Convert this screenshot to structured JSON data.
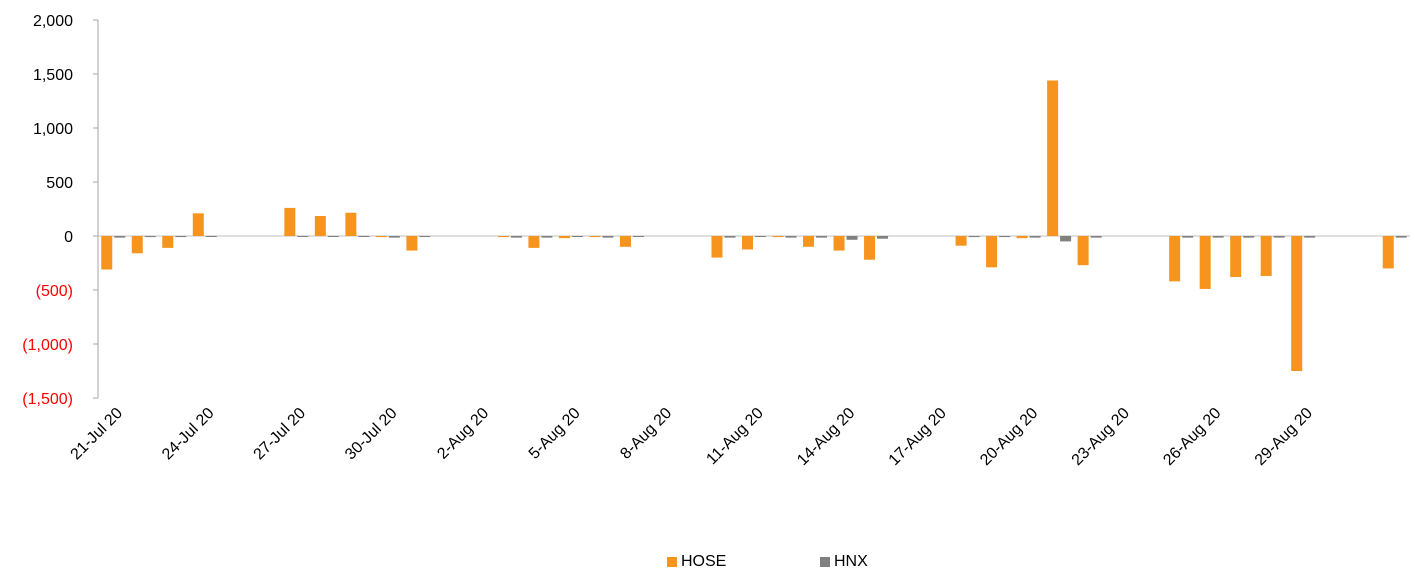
{
  "chart_data": {
    "type": "bar",
    "x": [
      "21-Jul 20",
      "22-Jul 20",
      "23-Jul 20",
      "24-Jul 20",
      "25-Jul 20",
      "26-Jul 20",
      "27-Jul 20",
      "28-Jul 20",
      "29-Jul 20",
      "30-Jul 20",
      "31-Jul 20",
      "1-Aug 20",
      "2-Aug 20",
      "3-Aug 20",
      "4-Aug 20",
      "5-Aug 20",
      "6-Aug 20",
      "7-Aug 20",
      "8-Aug 20",
      "9-Aug 20",
      "10-Aug 20",
      "11-Aug 20",
      "12-Aug 20",
      "13-Aug 20",
      "14-Aug 20",
      "15-Aug 20",
      "16-Aug 20",
      "17-Aug 20",
      "18-Aug 20",
      "19-Aug 20",
      "20-Aug 20",
      "21-Aug 20",
      "22-Aug 20",
      "23-Aug 20",
      "24-Aug 20",
      "25-Aug 20",
      "26-Aug 20",
      "27-Aug 20",
      "28-Aug 20",
      "29-Aug 20",
      "30-Aug 20",
      "31-Aug 20",
      "1-Sep 20"
    ],
    "x_tick_labels": [
      "21-Jul 20",
      "24-Jul 20",
      "27-Jul 20",
      "30-Jul 20",
      "2-Aug 20",
      "5-Aug 20",
      "8-Aug 20",
      "11-Aug 20",
      "14-Aug 20",
      "17-Aug 20",
      "20-Aug 20",
      "23-Aug 20",
      "26-Aug 20",
      "29-Aug 20"
    ],
    "series": [
      {
        "name": "HOSE",
        "color": "#f7941d",
        "values": [
          -310,
          -160,
          -110,
          210,
          null,
          null,
          260,
          185,
          215,
          -10,
          -135,
          null,
          null,
          -10,
          -110,
          -20,
          -10,
          -100,
          null,
          null,
          -200,
          -125,
          -10,
          -100,
          -135,
          -220,
          null,
          null,
          -90,
          -290,
          -20,
          1440,
          -270,
          null,
          null,
          -420,
          -490,
          -380,
          -370,
          -1250,
          null,
          null,
          -300
        ]
      },
      {
        "name": "HNX",
        "color": "#808080",
        "values": [
          -15,
          -10,
          -10,
          -5,
          null,
          null,
          -5,
          -5,
          -5,
          -15,
          -5,
          null,
          null,
          -15,
          -15,
          -5,
          -15,
          -5,
          null,
          null,
          -15,
          -5,
          -15,
          -15,
          -35,
          -25,
          null,
          null,
          -10,
          -10,
          -15,
          -50,
          -15,
          null,
          null,
          -15,
          -15,
          -15,
          -15,
          -15,
          null,
          null,
          -15
        ]
      }
    ],
    "y_ticks": [
      2000,
      1500,
      1000,
      500,
      0,
      -500,
      -1000,
      -1500
    ],
    "y_tick_labels": [
      "2,000",
      "1,500",
      "1,000",
      "500",
      "0",
      "(500)",
      "(1,000)",
      "(1,500)"
    ],
    "y_tick_colors": [
      "#000000",
      "#000000",
      "#000000",
      "#000000",
      "#000000",
      "#ff0000",
      "#ff0000",
      "#ff0000"
    ],
    "ylim": [
      -1500,
      2000
    ],
    "xlabel": "",
    "ylabel": "",
    "legend_position": "bottom-center",
    "grid": false
  }
}
